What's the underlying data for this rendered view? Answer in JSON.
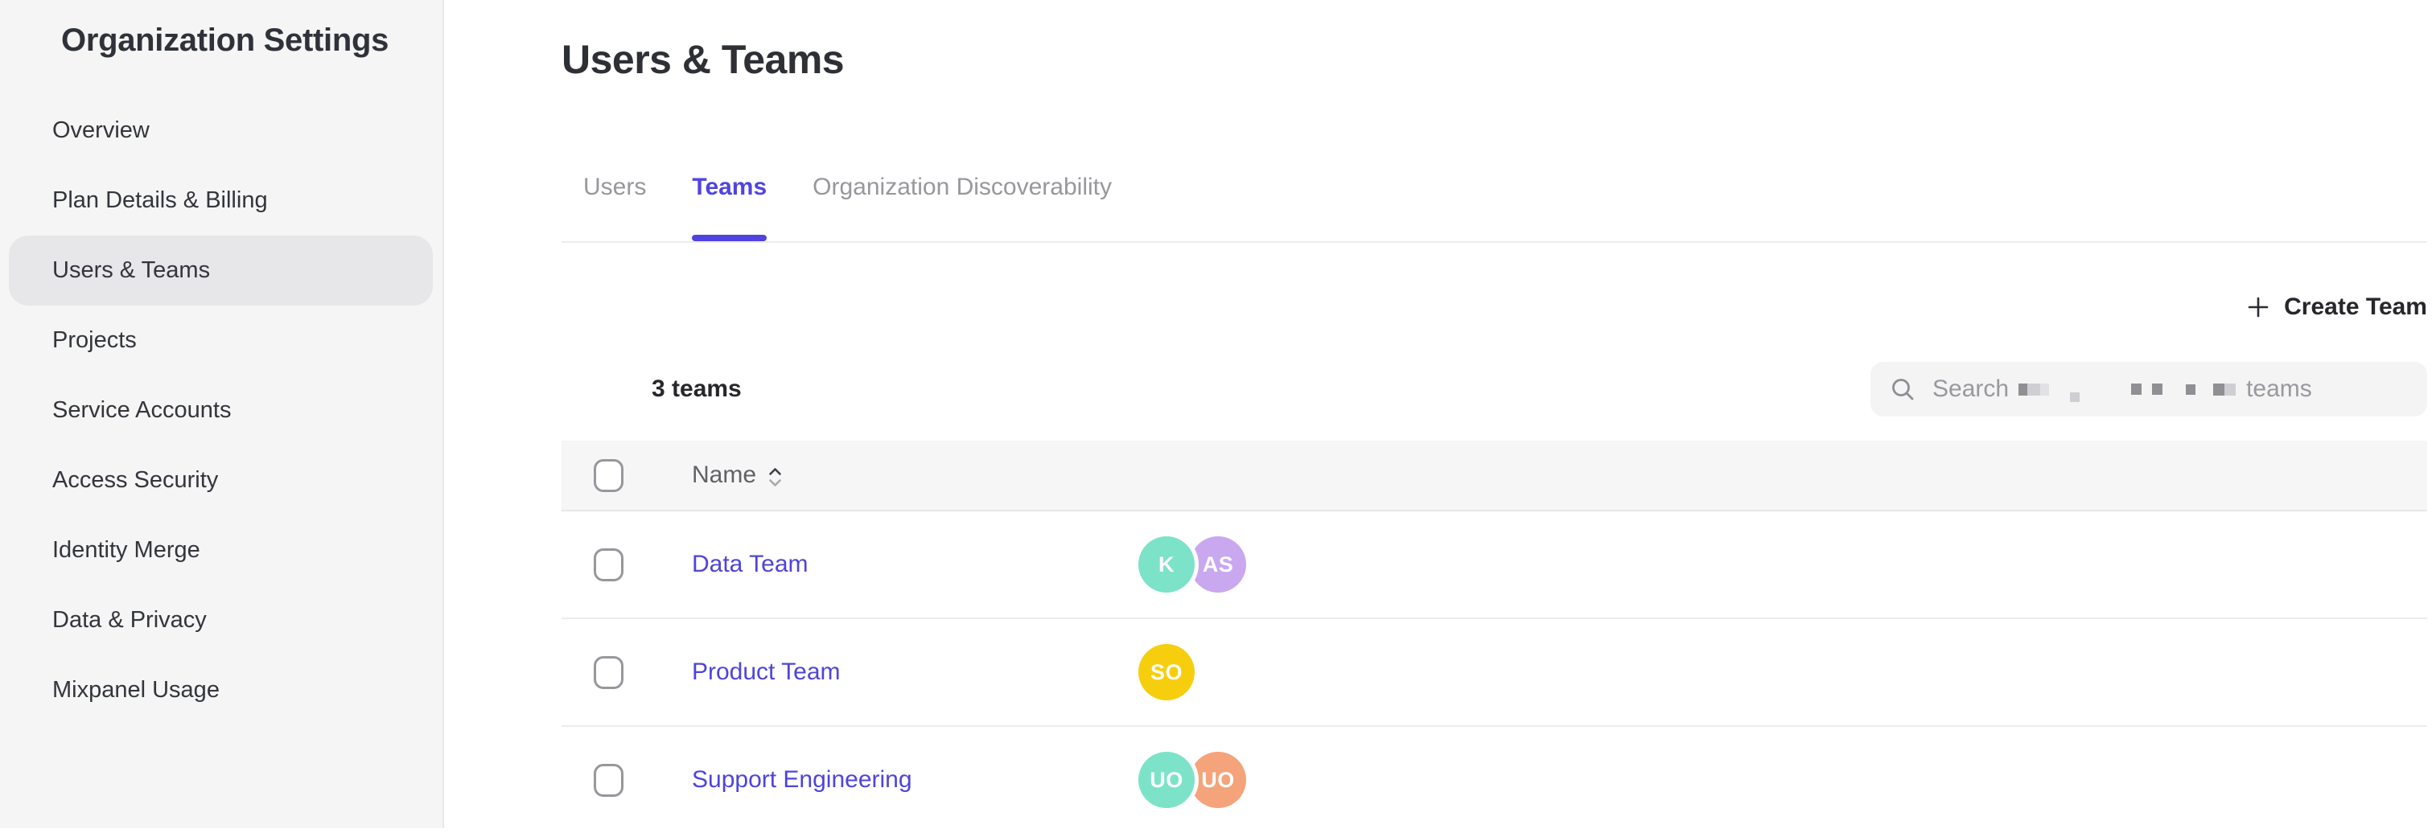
{
  "sidebar": {
    "title": "Organization Settings",
    "items": [
      {
        "label": "Overview",
        "selected": false
      },
      {
        "label": "Plan Details & Billing",
        "selected": false
      },
      {
        "label": "Users & Teams",
        "selected": true
      },
      {
        "label": "Projects",
        "selected": false
      },
      {
        "label": "Service Accounts",
        "selected": false
      },
      {
        "label": "Access Security",
        "selected": false
      },
      {
        "label": "Identity Merge",
        "selected": false
      },
      {
        "label": "Data & Privacy",
        "selected": false
      },
      {
        "label": "Mixpanel Usage",
        "selected": false
      }
    ]
  },
  "page": {
    "title": "Users & Teams"
  },
  "tabs": [
    {
      "label": "Users",
      "active": false
    },
    {
      "label": "Teams",
      "active": true
    },
    {
      "label": "Organization Discoverability",
      "active": false
    }
  ],
  "toolbar": {
    "create_team_label": "Create Team",
    "teams_count": "3 teams"
  },
  "search": {
    "placeholder_prefix": "Search",
    "placeholder_suffix": "teams",
    "redacted_middle": true
  },
  "table": {
    "columns": [
      {
        "label": "Name",
        "sortable": true
      }
    ],
    "rows": [
      {
        "name": "Data Team",
        "avatars": [
          {
            "initials": "K",
            "color": "#7CE3C9"
          },
          {
            "initials": "AS",
            "color": "#C9A8F0"
          }
        ]
      },
      {
        "name": "Product Team",
        "avatars": [
          {
            "initials": "SO",
            "color": "#F7CE0D"
          }
        ]
      },
      {
        "name": "Support Engineering",
        "avatars": [
          {
            "initials": "UO",
            "color": "#7CE3C9"
          },
          {
            "initials": "UO",
            "color": "#F5A37A"
          }
        ]
      }
    ]
  },
  "colors": {
    "accent": "#4F44E0",
    "link": "#4E44DA",
    "sidebar_bg": "#F5F5F6",
    "selected_pill": "#E7E7E9",
    "avatar_teal": "#7CE3C9",
    "avatar_purple": "#C9A8F0",
    "avatar_yellow": "#F7CE0D",
    "avatar_salmon": "#F5A37A"
  }
}
